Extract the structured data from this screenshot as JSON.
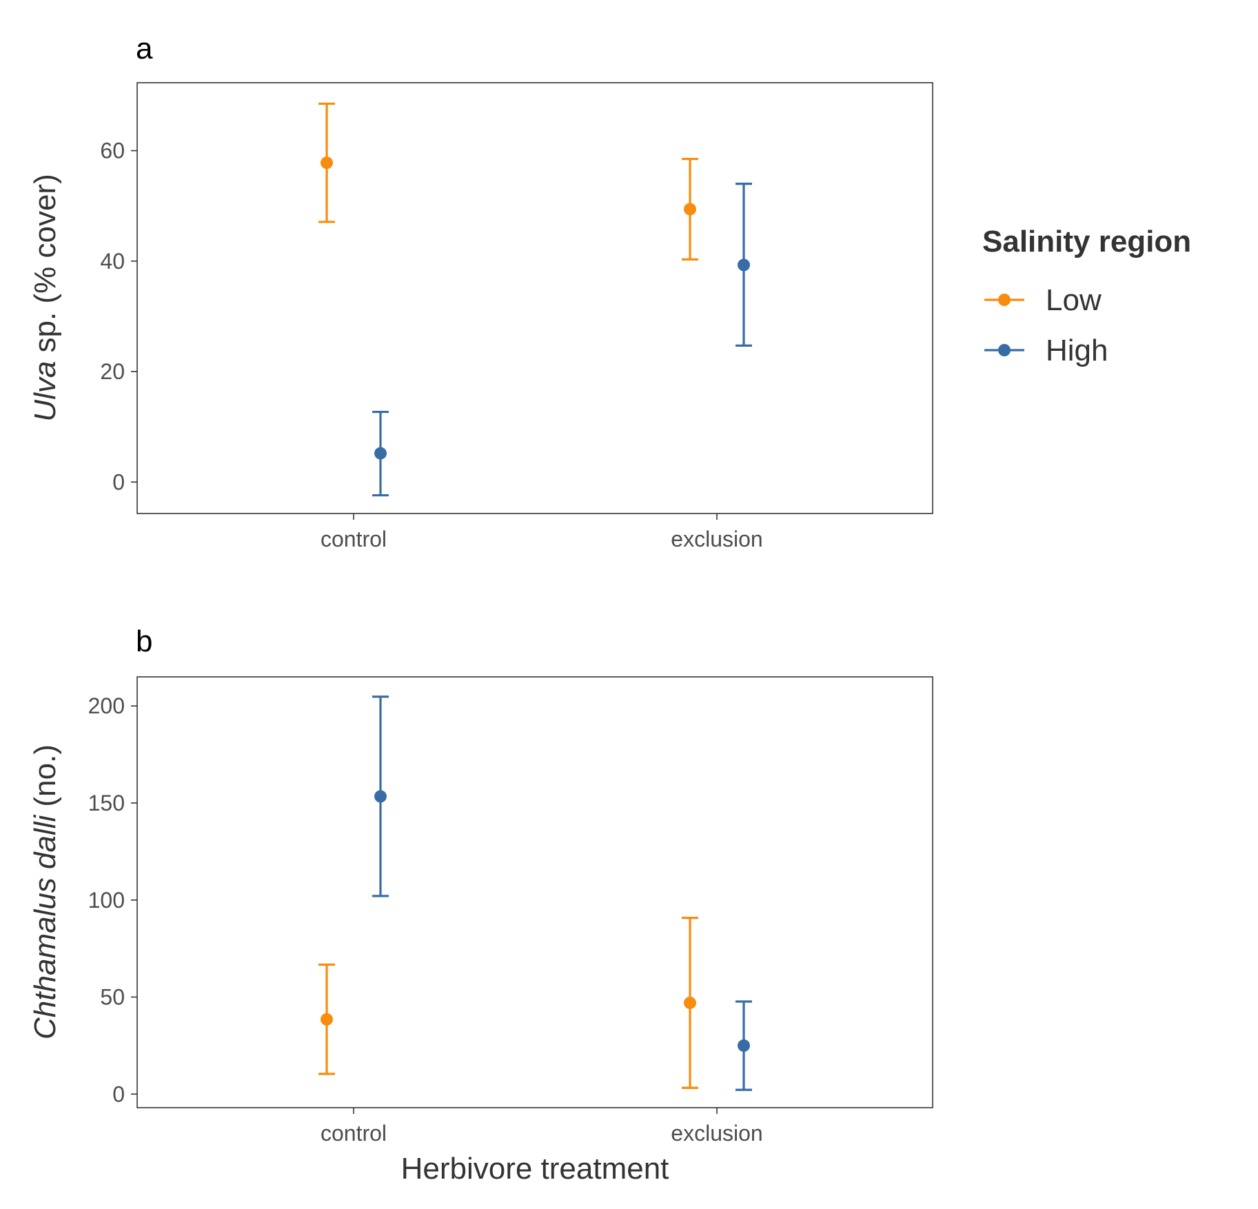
{
  "legend": {
    "title": "Salinity region",
    "items": [
      {
        "label": "Low",
        "color": "#F78C0E"
      },
      {
        "label": "High",
        "color": "#386CA6"
      }
    ]
  },
  "x_title": "Herbivore treatment",
  "chart_data": [
    {
      "type": "scatter",
      "panel": "a",
      "categories": [
        "control",
        "exclusion"
      ],
      "ylabel_italic": "Ulva",
      "ylabel_rest": " sp. (% cover)",
      "ylim": [
        -5.7,
        72.3
      ],
      "yticks": [
        0,
        20,
        40,
        60
      ],
      "series": [
        {
          "name": "Low",
          "color": "#F78C0E",
          "points": [
            {
              "x": "control",
              "y": 57.8,
              "lo": 47.1,
              "hi": 68.5
            },
            {
              "x": "exclusion",
              "y": 49.4,
              "lo": 40.3,
              "hi": 58.5
            }
          ]
        },
        {
          "name": "High",
          "color": "#386CA6",
          "points": [
            {
              "x": "control",
              "y": 5.2,
              "lo": -2.4,
              "hi": 12.7
            },
            {
              "x": "exclusion",
              "y": 39.3,
              "lo": 24.7,
              "hi": 54.0
            }
          ]
        }
      ]
    },
    {
      "type": "scatter",
      "panel": "b",
      "categories": [
        "control",
        "exclusion"
      ],
      "ylabel_italic": "Chthamalus dalli",
      "ylabel_rest": " (no.)",
      "ylim": [
        -7,
        215
      ],
      "yticks": [
        0,
        50,
        100,
        150,
        200
      ],
      "series": [
        {
          "name": "Low",
          "color": "#F78C0E",
          "points": [
            {
              "x": "control",
              "y": 38.5,
              "lo": 10.4,
              "hi": 66.7
            },
            {
              "x": "exclusion",
              "y": 47.0,
              "lo": 3.2,
              "hi": 90.8
            }
          ]
        },
        {
          "name": "High",
          "color": "#386CA6",
          "points": [
            {
              "x": "control",
              "y": 153.4,
              "lo": 102.1,
              "hi": 204.8
            },
            {
              "x": "exclusion",
              "y": 25.0,
              "lo": 2.2,
              "hi": 47.7
            }
          ]
        }
      ]
    }
  ]
}
